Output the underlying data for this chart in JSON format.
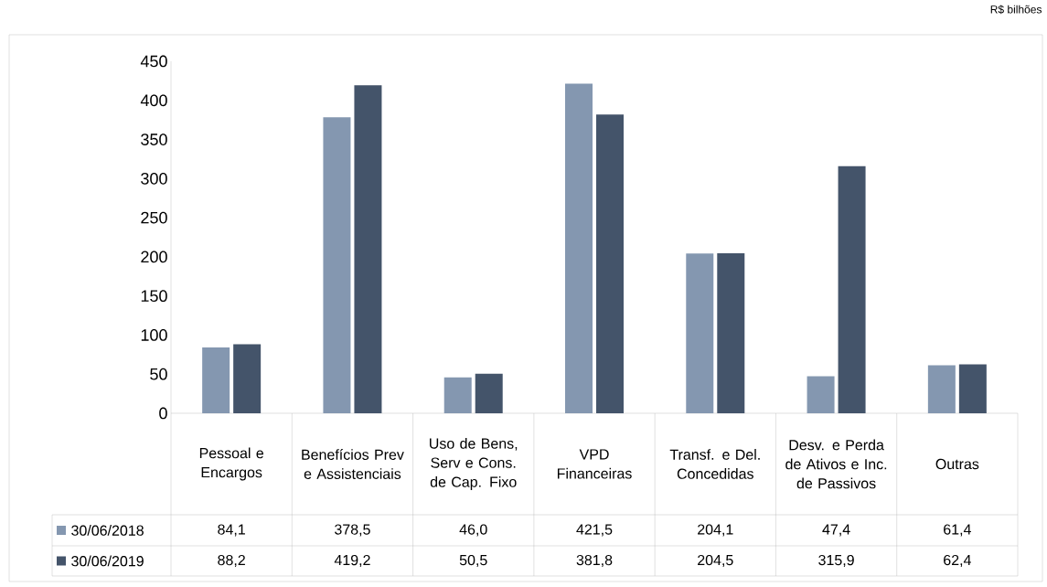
{
  "chart_data": {
    "type": "bar",
    "annotations": [
      "R$ bilhões"
    ],
    "categories": [
      "Pessoal e Encargos",
      "Benefícios Prev e Assistenciais",
      "Uso de Bens, Serv e Cons. de Cap. Fixo",
      "VPD Financeiras",
      "Transf. e Del. Concedidas",
      "Desv. e Perda de Ativos e Inc. de Passivos",
      "Outras"
    ],
    "series": [
      {
        "name": "30/06/2018",
        "color": "#8497b0",
        "values": [
          84.1,
          378.5,
          46.0,
          421.5,
          204.1,
          47.4,
          61.4
        ],
        "value_labels": [
          "84,1",
          "378,5",
          "46,0",
          "421,5",
          "204,1",
          "47,4",
          "61,4"
        ]
      },
      {
        "name": "30/06/2019",
        "color": "#44546a",
        "values": [
          88.2,
          419.2,
          50.5,
          381.8,
          204.5,
          315.9,
          62.4
        ],
        "value_labels": [
          "88,2",
          "419,2",
          "50,5",
          "381,8",
          "204,5",
          "315,9",
          "62,4"
        ]
      }
    ],
    "ylim": [
      0,
      450
    ],
    "yticks": [
      0,
      50,
      100,
      150,
      200,
      250,
      300,
      350,
      400,
      450
    ],
    "legend": "bottom"
  }
}
